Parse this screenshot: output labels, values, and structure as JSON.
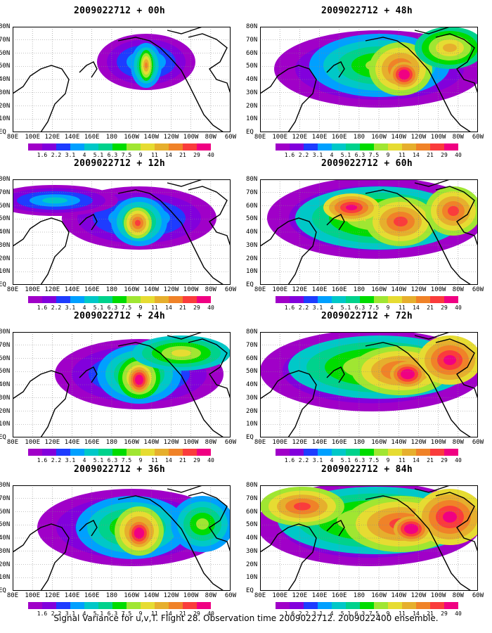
{
  "panels": [
    {
      "title": "2009022712 + 00h"
    },
    {
      "title": "2009022712 + 12h"
    },
    {
      "title": "2009022712 + 24h"
    },
    {
      "title": "2009022712 + 36h"
    },
    {
      "title": "2009022712 + 48h"
    },
    {
      "title": "2009022712 + 60h"
    },
    {
      "title": "2009022712 + 72h"
    },
    {
      "title": "2009022712 + 84h"
    }
  ],
  "lat_labels": [
    "80N",
    "70N",
    "60N",
    "50N",
    "40N",
    "30N",
    "20N",
    "10N",
    "EQ"
  ],
  "lon_labels": [
    "80E",
    "100E",
    "120E",
    "140E",
    "160E",
    "180",
    "160W",
    "140W",
    "120W",
    "100W",
    "80W",
    "60W"
  ],
  "colorbar": {
    "colors": [
      "#a000c8",
      "#8200dc",
      "#1e3cff",
      "#00a0ff",
      "#00c8c8",
      "#00d28c",
      "#00dc00",
      "#a0e632",
      "#e6dc32",
      "#e6af2d",
      "#f08228",
      "#fa3c3c",
      "#f00082"
    ],
    "labels": [
      "1.6",
      "2.2",
      "3.1",
      "4",
      "5.1",
      "6.3",
      "7.5",
      "9",
      "11",
      "14",
      "21",
      "29",
      "40"
    ]
  },
  "footer": "Signal Variance for u,v,T. Flight 28. Observation time 2009022712. 2009022400 ensemble."
}
